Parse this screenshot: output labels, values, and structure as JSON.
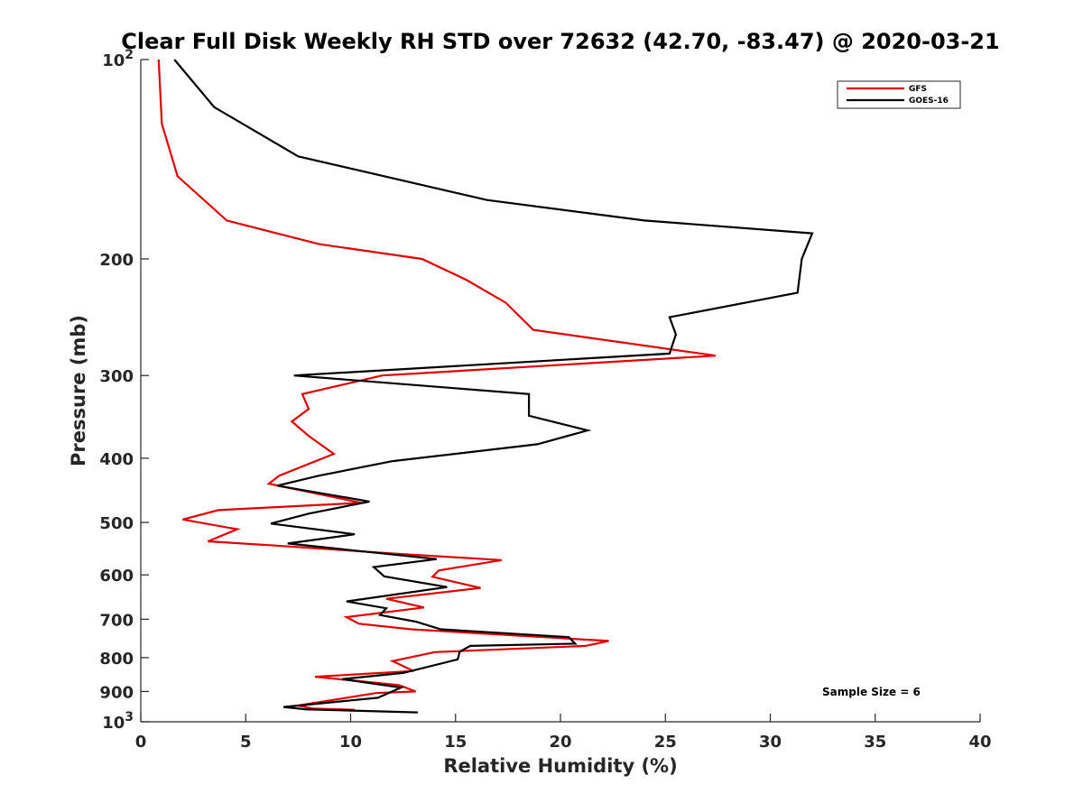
{
  "chart_data": {
    "type": "line",
    "title": "Clear Full Disk Weekly RH STD over 72632 (42.70, -83.47) @ 2020-03-21",
    "xlabel": "Relative Humidity (%)",
    "ylabel": "Pressure (mb)",
    "xlim": [
      0,
      40
    ],
    "ylim": [
      100,
      1000
    ],
    "yscale": "log",
    "y_reversed": true,
    "x_ticks": [
      "0",
      "5",
      "10",
      "15",
      "20",
      "25",
      "30",
      "35",
      "40"
    ],
    "y_ticks": [
      {
        "value": 100,
        "base": "10",
        "exp": "2"
      },
      {
        "value": 200,
        "label": "200"
      },
      {
        "value": 300,
        "label": "300"
      },
      {
        "value": 400,
        "label": "400"
      },
      {
        "value": 500,
        "label": "500"
      },
      {
        "value": 600,
        "label": "600"
      },
      {
        "value": 700,
        "label": "700"
      },
      {
        "value": 800,
        "label": "800"
      },
      {
        "value": 900,
        "label": "900"
      },
      {
        "value": 1000,
        "base": "10",
        "exp": "3"
      }
    ],
    "grid": false,
    "legend_position": "top-right",
    "annotation": "Sample Size = 6",
    "series": [
      {
        "name": "GFS",
        "color": "#e00000",
        "points": [
          [
            0.85,
            100
          ],
          [
            1.0,
            125
          ],
          [
            1.75,
            150
          ],
          [
            4.1,
            175
          ],
          [
            8.5,
            190
          ],
          [
            13.4,
            200
          ],
          [
            15.5,
            215
          ],
          [
            17.4,
            233
          ],
          [
            18.7,
            256
          ],
          [
            27.4,
            280
          ],
          [
            11.5,
            300
          ],
          [
            7.7,
            320
          ],
          [
            8.0,
            337
          ],
          [
            7.2,
            352
          ],
          [
            8.0,
            370
          ],
          [
            9.2,
            394
          ],
          [
            6.6,
            425
          ],
          [
            6.1,
            437
          ],
          [
            10.5,
            467
          ],
          [
            3.7,
            479
          ],
          [
            2.0,
            495
          ],
          [
            4.6,
            512
          ],
          [
            3.2,
            534
          ],
          [
            6.5,
            542
          ],
          [
            12.0,
            557
          ],
          [
            17.2,
            570
          ],
          [
            14.2,
            591
          ],
          [
            13.9,
            604
          ],
          [
            16.2,
            628
          ],
          [
            11.7,
            652
          ],
          [
            13.5,
            672
          ],
          [
            9.8,
            695
          ],
          [
            10.4,
            711
          ],
          [
            12.9,
            725
          ],
          [
            19.2,
            745
          ],
          [
            22.3,
            755
          ],
          [
            21.2,
            768
          ],
          [
            14.0,
            785
          ],
          [
            12.0,
            810
          ],
          [
            13.0,
            838
          ],
          [
            8.3,
            855
          ],
          [
            12.3,
            880
          ],
          [
            13.1,
            900
          ],
          [
            11.2,
            905
          ],
          [
            7.5,
            945
          ],
          [
            8.2,
            955
          ],
          [
            10.2,
            959
          ]
        ]
      },
      {
        "name": "GOES-16",
        "color": "#000000",
        "points": [
          [
            1.6,
            100
          ],
          [
            3.5,
            118
          ],
          [
            7.5,
            140
          ],
          [
            16.5,
            163
          ],
          [
            24.0,
            175
          ],
          [
            32.0,
            183
          ],
          [
            31.5,
            200
          ],
          [
            31.3,
            225
          ],
          [
            25.2,
            245
          ],
          [
            25.5,
            260
          ],
          [
            25.2,
            278
          ],
          [
            7.3,
            300
          ],
          [
            18.5,
            320
          ],
          [
            18.5,
            345
          ],
          [
            21.3,
            363
          ],
          [
            18.9,
            381
          ],
          [
            12.0,
            404
          ],
          [
            8.5,
            425
          ],
          [
            6.5,
            440
          ],
          [
            10.9,
            465
          ],
          [
            8.0,
            485
          ],
          [
            6.2,
            502
          ],
          [
            10.2,
            521
          ],
          [
            7.0,
            538
          ],
          [
            14.1,
            568
          ],
          [
            11.1,
            584
          ],
          [
            11.6,
            603
          ],
          [
            14.6,
            626
          ],
          [
            9.8,
            658
          ],
          [
            11.7,
            674
          ],
          [
            11.4,
            690
          ],
          [
            13.1,
            706
          ],
          [
            14.3,
            725
          ],
          [
            20.4,
            745
          ],
          [
            20.7,
            762
          ],
          [
            15.7,
            768
          ],
          [
            15.2,
            784
          ],
          [
            15.1,
            805
          ],
          [
            12.5,
            844
          ],
          [
            9.6,
            862
          ],
          [
            12.4,
            888
          ],
          [
            11.3,
            920
          ],
          [
            6.8,
            950
          ],
          [
            7.9,
            958
          ],
          [
            13.2,
            968
          ]
        ]
      }
    ]
  }
}
